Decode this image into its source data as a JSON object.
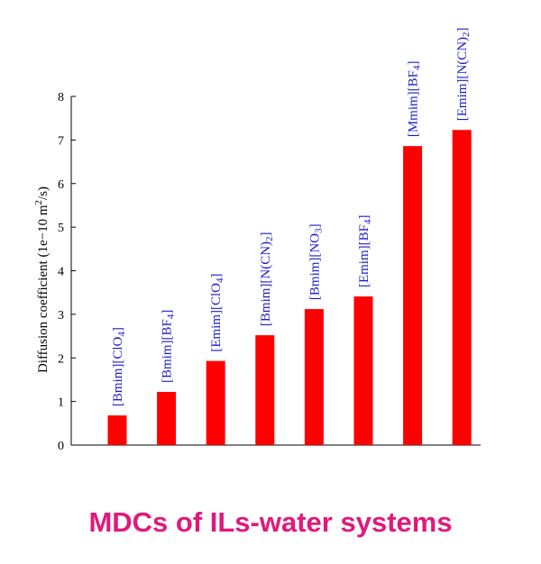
{
  "chart_data": {
    "type": "bar",
    "title": "MDCs of ILs-water systems",
    "ylabel": "Diffusion coefficient (1e−10 m²/s)",
    "ylim": [
      0,
      8
    ],
    "yticks": [
      "0",
      "1",
      "2",
      "3",
      "4",
      "5",
      "6",
      "7",
      "8"
    ],
    "categories": [
      "[Bmim][ClO4]",
      "[Bmim][BF4]",
      "[Emim][ClO4]",
      "[Bmim][N(CN)2]",
      "[Bmim][NO3]",
      "[Emim][BF4]",
      "[Mmim][BF4]",
      "[Emim][N(CN)2]"
    ],
    "values": [
      0.68,
      1.22,
      1.93,
      2.52,
      3.12,
      3.41,
      6.86,
      7.23
    ],
    "bar_color": "#ff0000",
    "label_color": "#1a1acc",
    "title_color": "#e0197a"
  }
}
